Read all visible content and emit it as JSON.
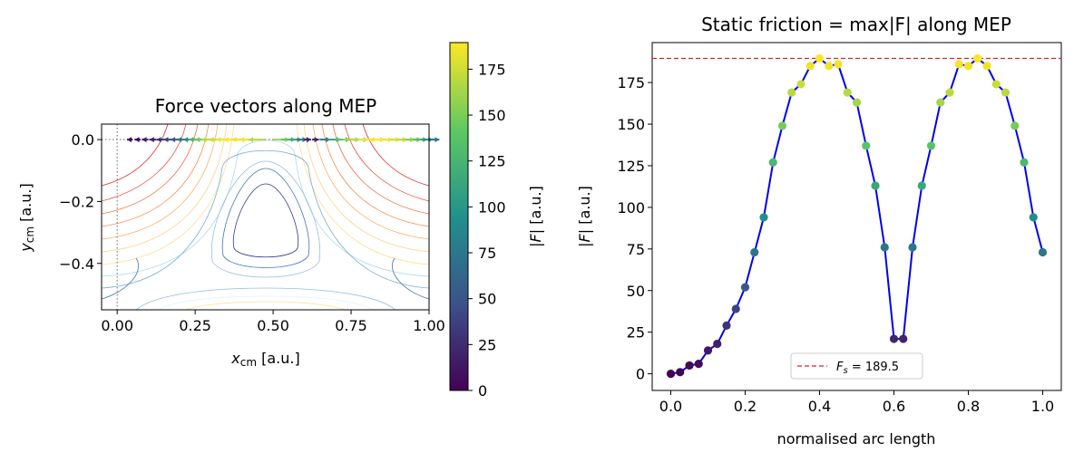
{
  "chart_data": [
    {
      "type": "contour",
      "title": "Force vectors along MEP",
      "xlabel": "x_cm  [a.u.]",
      "xlabel_main": "x",
      "xlabel_sub": "cm",
      "xlabel_unit": "[a.u.]",
      "ylabel_main": "y",
      "ylabel_sub": "cm",
      "ylabel_unit": "[a.u.]",
      "xlim": [
        -0.05,
        1.0
      ],
      "ylim": [
        -0.55,
        0.05
      ],
      "xticks": [
        "0.00",
        "0.25",
        "0.50",
        "0.75",
        "1.00"
      ],
      "yticks": [
        "0.0",
        "−0.2",
        "−0.4"
      ],
      "colorbar": {
        "label": "|F|  [a.u.]",
        "label_main": "|F|",
        "label_unit": "[a.u.]",
        "range": [
          0,
          189.5
        ],
        "ticks": [
          "0",
          "25",
          "50",
          "75",
          "100",
          "125",
          "150",
          "175"
        ]
      },
      "arrows_along_mep": {
        "x": [
          0.0,
          0.025,
          0.05,
          0.075,
          0.1,
          0.125,
          0.15,
          0.175,
          0.2,
          0.225,
          0.25,
          0.275,
          0.3,
          0.325,
          0.35,
          0.375,
          0.4,
          0.425,
          0.45,
          0.475,
          0.5,
          0.525,
          0.55,
          0.575,
          0.6,
          0.625,
          0.65,
          0.675,
          0.7,
          0.725,
          0.75,
          0.775,
          0.8,
          0.825,
          0.85,
          0.875,
          0.9,
          0.925,
          0.95,
          0.975,
          1.0
        ],
        "magnitude": [
          0,
          1,
          5,
          6,
          14,
          18,
          29,
          39,
          52,
          73,
          94,
          127,
          149,
          169,
          174,
          185,
          189.5,
          185,
          186,
          169,
          163,
          137,
          113,
          76,
          21,
          21,
          76,
          113,
          137,
          163,
          169,
          186,
          185,
          189.5,
          185,
          174,
          169,
          149,
          127,
          94,
          73
        ]
      },
      "colors": {
        "reference_line": "#808080"
      }
    },
    {
      "type": "line",
      "title": "Static friction = max|F| along MEP",
      "xlabel": "normalised arc length",
      "ylabel": "|F|  [a.u.]",
      "ylabel_main": "|F|",
      "ylabel_unit": "[a.u.]",
      "xlim": [
        -0.05,
        1.05
      ],
      "ylim": [
        -10,
        199
      ],
      "xticks": [
        0.0,
        0.2,
        0.4,
        0.6,
        0.8,
        1.0
      ],
      "yticks": [
        0,
        25,
        50,
        75,
        100,
        125,
        150,
        175
      ],
      "x": [
        0.0,
        0.025,
        0.05,
        0.075,
        0.1,
        0.125,
        0.15,
        0.175,
        0.2,
        0.225,
        0.25,
        0.275,
        0.3,
        0.325,
        0.35,
        0.375,
        0.4,
        0.425,
        0.45,
        0.475,
        0.5,
        0.525,
        0.55,
        0.575,
        0.6,
        0.625,
        0.65,
        0.675,
        0.7,
        0.725,
        0.75,
        0.775,
        0.8,
        0.825,
        0.85,
        0.875,
        0.9,
        0.925,
        0.95,
        0.975,
        1.0
      ],
      "y": [
        0,
        1,
        5,
        6,
        14,
        18,
        29,
        39,
        52,
        73,
        94,
        127,
        149,
        169,
        174,
        185,
        189.5,
        185,
        186,
        169,
        163,
        137,
        113,
        76,
        21,
        21,
        76,
        113,
        137,
        163,
        169,
        186,
        185,
        189.5,
        185,
        174,
        169,
        149,
        127,
        94,
        73
      ],
      "hline": {
        "y": 189.5,
        "legend": "F_s = 189.5",
        "legend_main": "F",
        "legend_sub": "s",
        "legend_rest": " = 189.5"
      },
      "legend_placement": "lower-center",
      "colors": {
        "line": "#0000ee",
        "hline": "#e41a1c"
      }
    }
  ]
}
